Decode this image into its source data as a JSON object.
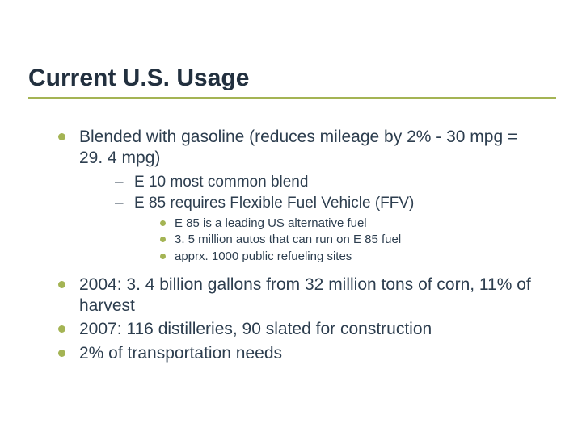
{
  "title": "Current U.S. Usage",
  "colors": {
    "bullet": "#a4b454",
    "text": "#2d3e4f",
    "title": "#22303f",
    "underline": "#a4b454",
    "background": "#ffffff"
  },
  "bullets": {
    "blended": "Blended with gasoline (reduces mileage by 2% - 30 mpg = 29. 4 mpg)",
    "e10": "E 10 most common blend",
    "e85": "E 85 requires Flexible Fuel Vehicle (FFV)",
    "e85_leading": "E 85 is a leading US alternative fuel",
    "autos": "3. 5 million autos that can run on E 85 fuel",
    "refueling": "apprx. 1000 public refueling sites",
    "y2004": "2004: 3. 4 billion gallons from 32 million tons of corn, 11% of harvest",
    "y2007": "2007: 116 distilleries, 90 slated for construction",
    "transport": "2% of transportation needs"
  }
}
